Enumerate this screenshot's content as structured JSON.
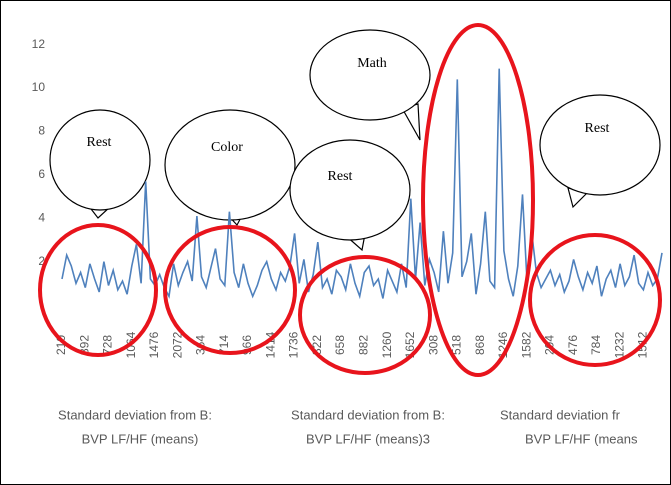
{
  "chart_data": {
    "type": "line",
    "categories": [
      "210",
      null,
      null,
      null,
      null,
      "392",
      null,
      null,
      null,
      null,
      "728",
      null,
      null,
      null,
      null,
      "1064",
      null,
      null,
      null,
      null,
      "1476",
      null,
      null,
      null,
      null,
      "2072",
      null,
      null,
      null,
      null,
      "364",
      null,
      null,
      null,
      null,
      "714",
      null,
      null,
      null,
      null,
      "966",
      null,
      null,
      null,
      null,
      "1414",
      null,
      null,
      null,
      null,
      "1736",
      null,
      null,
      null,
      null,
      "322",
      null,
      null,
      null,
      null,
      "658",
      null,
      null,
      null,
      null,
      "882",
      null,
      null,
      null,
      null,
      "1260",
      null,
      null,
      null,
      null,
      "1652",
      null,
      null,
      null,
      null,
      "308",
      null,
      null,
      null,
      null,
      "518",
      null,
      null,
      null,
      null,
      "868",
      null,
      null,
      null,
      null,
      "1246",
      null,
      null,
      null,
      null,
      "1582",
      null,
      null,
      null,
      null,
      "294",
      null,
      null,
      null,
      null,
      "476",
      null,
      null,
      null,
      null,
      "784",
      null,
      null,
      null,
      null,
      "1232",
      null,
      null,
      null,
      null,
      "1512",
      null,
      null,
      null,
      null
    ],
    "series": [
      {
        "color": "#4f81bd",
        "values": [
          1.2,
          2.3,
          1.8,
          1.0,
          1.5,
          0.8,
          1.9,
          1.2,
          0.6,
          2.0,
          0.9,
          1.6,
          0.7,
          1.1,
          0.5,
          1.8,
          2.8,
          1.0,
          5.7,
          1.2,
          0.9,
          1.4,
          0.8,
          0.4,
          1.9,
          0.9,
          1.5,
          2.0,
          1.1,
          4.1,
          1.3,
          0.8,
          1.7,
          2.6,
          1.2,
          0.9,
          4.3,
          1.5,
          0.8,
          1.9,
          1.0,
          0.4,
          0.9,
          1.6,
          2.0,
          1.2,
          0.7,
          1.5,
          1.1,
          1.8,
          3.3,
          1.0,
          2.1,
          0.6,
          1.4,
          2.9,
          0.8,
          1.2,
          0.5,
          1.6,
          1.3,
          0.7,
          1.9,
          1.0,
          0.4,
          1.5,
          1.8,
          0.9,
          1.2,
          0.3,
          1.6,
          1.1,
          0.6,
          1.9,
          0.8,
          4.9,
          1.2,
          3.8,
          0.9,
          2.1,
          1.5,
          0.6,
          3.4,
          1.0,
          2.4,
          10.4,
          1.3,
          2.0,
          3.3,
          0.5,
          1.9,
          4.3,
          1.1,
          0.8,
          10.9,
          2.5,
          1.2,
          0.4,
          1.8,
          5.1,
          1.0,
          3.3,
          1.5,
          0.8,
          1.2,
          1.6,
          0.9,
          1.4,
          0.6,
          1.1,
          2.1,
          1.3,
          0.7,
          1.5,
          1.0,
          1.8,
          0.4,
          1.2,
          1.6,
          0.8,
          1.9,
          0.9,
          1.3,
          2.3,
          1.0,
          0.7,
          1.5,
          0.9,
          1.2,
          2.4
        ]
      }
    ],
    "ylim": [
      0,
      13
    ],
    "yticks": [
      2,
      4,
      6,
      8,
      10,
      12
    ],
    "annotations": [
      "Rest",
      "Color",
      "Rest",
      "Math",
      "Rest"
    ],
    "group_labels": [
      [
        "Standard deviation from B:",
        "BVP LF/HF (means)"
      ],
      [
        "Standard deviation from B:",
        "BVP LF/HF (means)3"
      ],
      [
        "Standard deviation fr",
        "BVP LF/HF (means"
      ]
    ]
  }
}
